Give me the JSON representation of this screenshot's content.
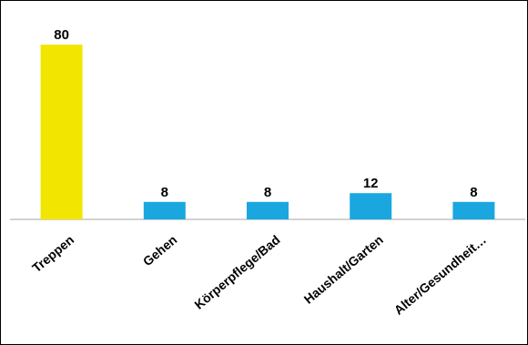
{
  "chart_data": {
    "type": "bar",
    "categories": [
      "Treppen",
      "Gehen",
      "Körperpflege/Bad",
      "Haushalt/Garten",
      "Alter/Gesundheit…"
    ],
    "values": [
      80,
      8,
      8,
      12,
      8
    ],
    "title": "",
    "xlabel": "",
    "ylabel": "",
    "ylim": [
      0,
      80
    ],
    "grid": false,
    "data_labels": true,
    "bar_colors": [
      "#f2e600",
      "#1aa7e0",
      "#1aa7e0",
      "#1aa7e0",
      "#1aa7e0"
    ]
  }
}
